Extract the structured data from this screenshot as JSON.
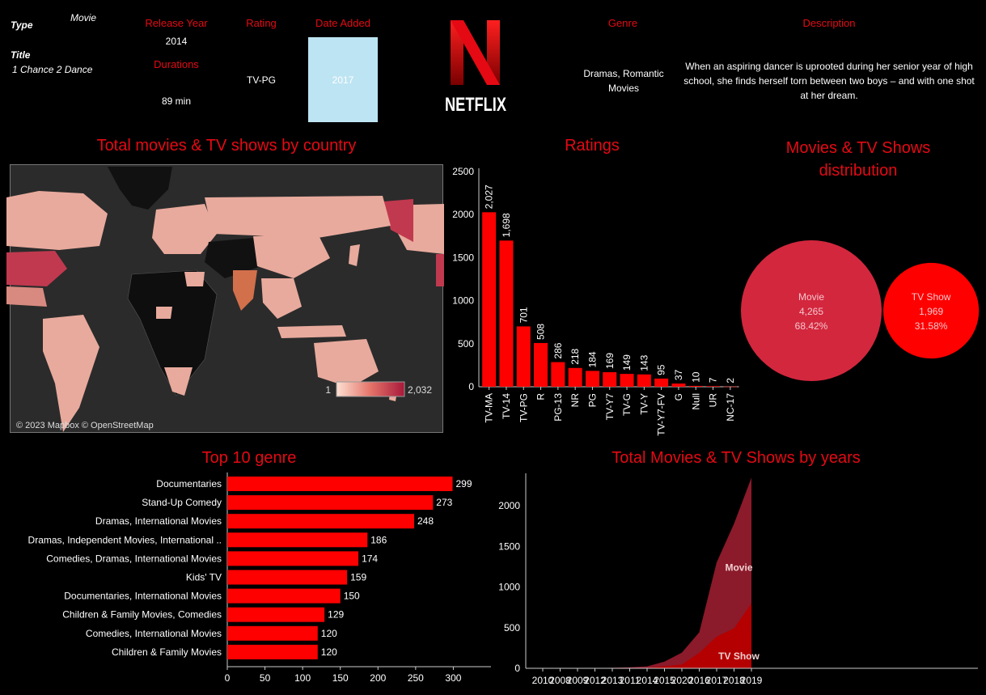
{
  "header": {
    "type_label": "Type",
    "type_value": "Movie",
    "title_label": "Title",
    "title_value": "1 Chance 2 Dance",
    "release_year_label": "Release Year",
    "release_year_value": "2014",
    "durations_label": "Durations",
    "durations_value": "89 min",
    "rating_label": "Rating",
    "rating_value": "TV-PG",
    "date_added_label": "Date Added",
    "date_added_value": "2017",
    "logo_text": "NETFLIX",
    "genre_label": "Genre",
    "genre_value": "Dramas, Romantic Movies",
    "description_label": "Description",
    "description_value": "When an aspiring dancer is uprooted during her senior year of high school, she finds herself torn between two boys – and with one shot at her dream."
  },
  "map": {
    "title": "Total movies & TV shows by country",
    "legend_min": "1",
    "legend_max": "2,032",
    "attribution": "© 2023 Mapbox © OpenStreetMap"
  },
  "chart_data": [
    {
      "type": "bar",
      "title": "Ratings",
      "categories": [
        "TV-MA",
        "TV-14",
        "TV-PG",
        "R",
        "PG-13",
        "NR",
        "PG",
        "TV-Y7",
        "TV-G",
        "TV-Y",
        "TV-Y7-FV",
        "G",
        "Null",
        "UR",
        "NC-17"
      ],
      "values": [
        2027,
        1698,
        701,
        508,
        286,
        218,
        184,
        169,
        149,
        143,
        95,
        37,
        10,
        7,
        2
      ],
      "value_labels": [
        "2,027",
        "1,698",
        "701",
        "508",
        "286",
        "218",
        "184",
        "169",
        "149",
        "143",
        "95",
        "37",
        "10",
        "7",
        "2"
      ],
      "ylim": [
        0,
        2500
      ],
      "yticks": [
        0,
        500,
        1000,
        1500,
        2000,
        2500
      ],
      "color": "#ff0000"
    },
    {
      "type": "bubble",
      "title": "Movies & TV Shows distribution",
      "items": [
        {
          "name": "Movie",
          "value_label": "4,265",
          "pct": "68.42%",
          "value": 4265,
          "color": "#d3273e"
        },
        {
          "name": "TV Show",
          "value_label": "1,969",
          "pct": "31.58%",
          "value": 1969,
          "color": "#ff0000"
        }
      ]
    },
    {
      "type": "bar",
      "orientation": "horizontal",
      "title": "Top 10 genre",
      "categories": [
        "Documentaries",
        "Stand-Up Comedy",
        "Dramas, International Movies",
        "Dramas, Independent Movies, International ..",
        "Comedies, Dramas, International Movies",
        "Kids' TV",
        "Documentaries, International Movies",
        "Children & Family Movies, Comedies",
        "Comedies, International Movies",
        "Children & Family Movies"
      ],
      "values": [
        299,
        273,
        248,
        186,
        174,
        159,
        150,
        129,
        120,
        120
      ],
      "xlim": [
        0,
        350
      ],
      "xticks": [
        0,
        50,
        100,
        150,
        200,
        250,
        300
      ],
      "color": "#ff0000"
    },
    {
      "type": "area",
      "title": "Total Movies & TV Shows by years",
      "x": [
        "2010",
        "2008",
        "2009",
        "2012",
        "2013",
        "2011",
        "2014",
        "2015",
        "2020",
        "2016",
        "2017",
        "2018",
        "2019"
      ],
      "series": [
        {
          "name": "Movie",
          "values": [
            1,
            1,
            2,
            3,
            6,
            13,
            19,
            56,
            147,
            253,
            913,
            1290,
            1546
          ],
          "color": "#8b1a2b"
        },
        {
          "name": "TV Show",
          "values": [
            0,
            0,
            0,
            0,
            0,
            0,
            5,
            26,
            46,
            190,
            390,
            490,
            800
          ],
          "color": "#b40000"
        }
      ],
      "ylim": [
        0,
        2400
      ],
      "yticks": [
        0,
        500,
        1000,
        1500,
        2000
      ]
    }
  ],
  "colors": {
    "accent": "#e50914",
    "date_added_box": "#bde4f2",
    "map_bg": "#2b2b2b"
  }
}
